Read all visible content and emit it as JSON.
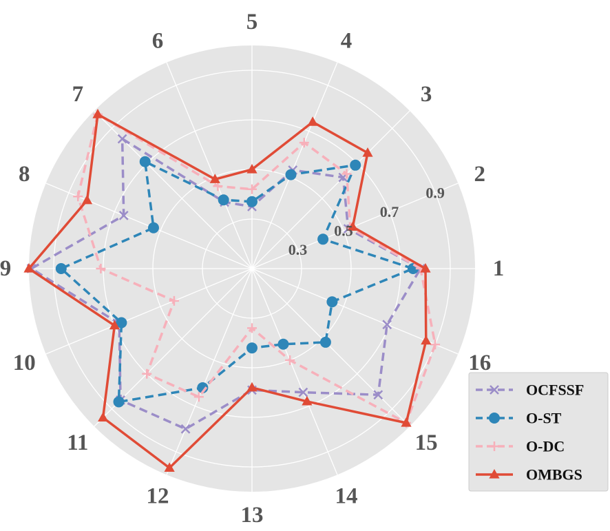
{
  "chart_data": {
    "type": "radar",
    "title": "",
    "categories": [
      "1",
      "2",
      "3",
      "4",
      "5",
      "6",
      "7",
      "8",
      "9",
      "10",
      "11",
      "12",
      "13",
      "14",
      "15",
      "16"
    ],
    "radial_ticks": [
      "0.3",
      "0.5",
      "0.7",
      "0.9"
    ],
    "radial_tick_values": [
      0.3,
      0.5,
      0.7,
      0.9
    ],
    "rlim": [
      0.1,
      1.0
    ],
    "grid": true,
    "legend_position": "bottom-right",
    "series": [
      {
        "name": "OCFSSF",
        "color": "#9b8dc8",
        "linestyle": "dashed",
        "marker": "x",
        "values": [
          0.78,
          0.52,
          0.62,
          0.53,
          0.35,
          0.39,
          0.84,
          0.66,
          0.99,
          0.68,
          0.85,
          0.8,
          0.59,
          0.64,
          0.82,
          0.69
        ]
      },
      {
        "name": "O-ST",
        "color": "#2e86b8",
        "linestyle": "dashed",
        "marker": "circle",
        "values": [
          0.75,
          0.41,
          0.69,
          0.51,
          0.37,
          0.4,
          0.71,
          0.53,
          0.87,
          0.67,
          0.86,
          0.62,
          0.42,
          0.43,
          0.52,
          0.45
        ]
      },
      {
        "name": "O-DC",
        "color": "#f7b0ba",
        "linestyle": "dashed",
        "marker": "plus",
        "values": [
          0.78,
          0.53,
          0.64,
          0.65,
          0.42,
          0.46,
          0.98,
          0.86,
          0.71,
          0.44,
          0.7,
          0.66,
          0.34,
          0.5,
          0.98,
          0.9
        ]
      },
      {
        "name": "OMBGS",
        "color": "#e04b36",
        "linestyle": "solid",
        "marker": "triangle",
        "values": [
          0.8,
          0.54,
          0.76,
          0.74,
          0.5,
          0.49,
          0.98,
          0.82,
          1.0,
          0.7,
          0.95,
          0.97,
          0.58,
          0.68,
          0.98,
          0.86
        ]
      }
    ]
  }
}
